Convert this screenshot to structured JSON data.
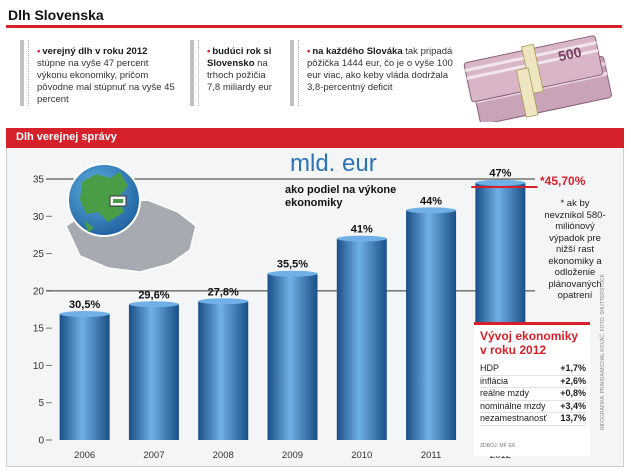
{
  "page": {
    "title": "Dlh Slovenska",
    "info_boxes": [
      {
        "lead": "verejný dlh v roku 2012",
        "text": " stúpne na vyše 47 percent výkonu ekonomiky, pričom pôvodne mal stúpnuť na vyše 45 percent"
      },
      {
        "lead": "budúci rok si Slovensko",
        "text": " na trhoch požičia 7,8 miliardy eur"
      },
      {
        "lead": "na každého Slováka",
        "text": " tak pripadá pôžička 1444 eur, čo je o vyše 100 eur viac, ako keby vláda dodržala 3,8-percentný deficit"
      }
    ],
    "banknote_value": "500"
  },
  "chart_data": {
    "type": "bar",
    "title": "Dlh verejnej správy",
    "unit_label": "mld. eur",
    "subtitle": "ako podiel na výkone ekonomiky",
    "categories": [
      "2006",
      "2007",
      "2008",
      "2009",
      "2010",
      "2011",
      "2012"
    ],
    "values": [
      16.9,
      18.2,
      18.6,
      22.3,
      27.0,
      30.8,
      34.5
    ],
    "pct_labels": [
      "30,5%",
      "29,6%",
      "27,8%",
      "35,5%",
      "41%",
      "44%",
      "47%"
    ],
    "ylim": [
      0,
      35
    ],
    "yticks": [
      0,
      5,
      10,
      15,
      20,
      25,
      30,
      35
    ],
    "reference_lines": [
      20,
      35
    ],
    "target_value": "*45,70%",
    "note": "* ak by nevznikol 580-miliónový výpadok pre nižší rast ekonomiky a odloženie plánovaných opatrení",
    "colors": {
      "bar": "#2d73b9",
      "bar_light": "#6fb0e6",
      "bar_dark": "#1b4f86",
      "accent": "#d6202a"
    }
  },
  "table": {
    "title": "Vývoj ekonomiky v roku 2012",
    "rows": [
      {
        "label": "HDP",
        "value": "+1,7%"
      },
      {
        "label": "inflácia",
        "value": "+2,6%"
      },
      {
        "label": "reálne mzdy",
        "value": "+0,8%"
      },
      {
        "label": "nominálne mzdy",
        "value": "+3,4%"
      },
      {
        "label": "nezamestnanosť",
        "value": "13,7%"
      }
    ],
    "source": "ZDROJ: MF SR"
  },
  "credit": "INFOGRAFIKA: PRAVDA/MICHAL KOVÁČ, FOTO: SHUTTERSTOCK"
}
